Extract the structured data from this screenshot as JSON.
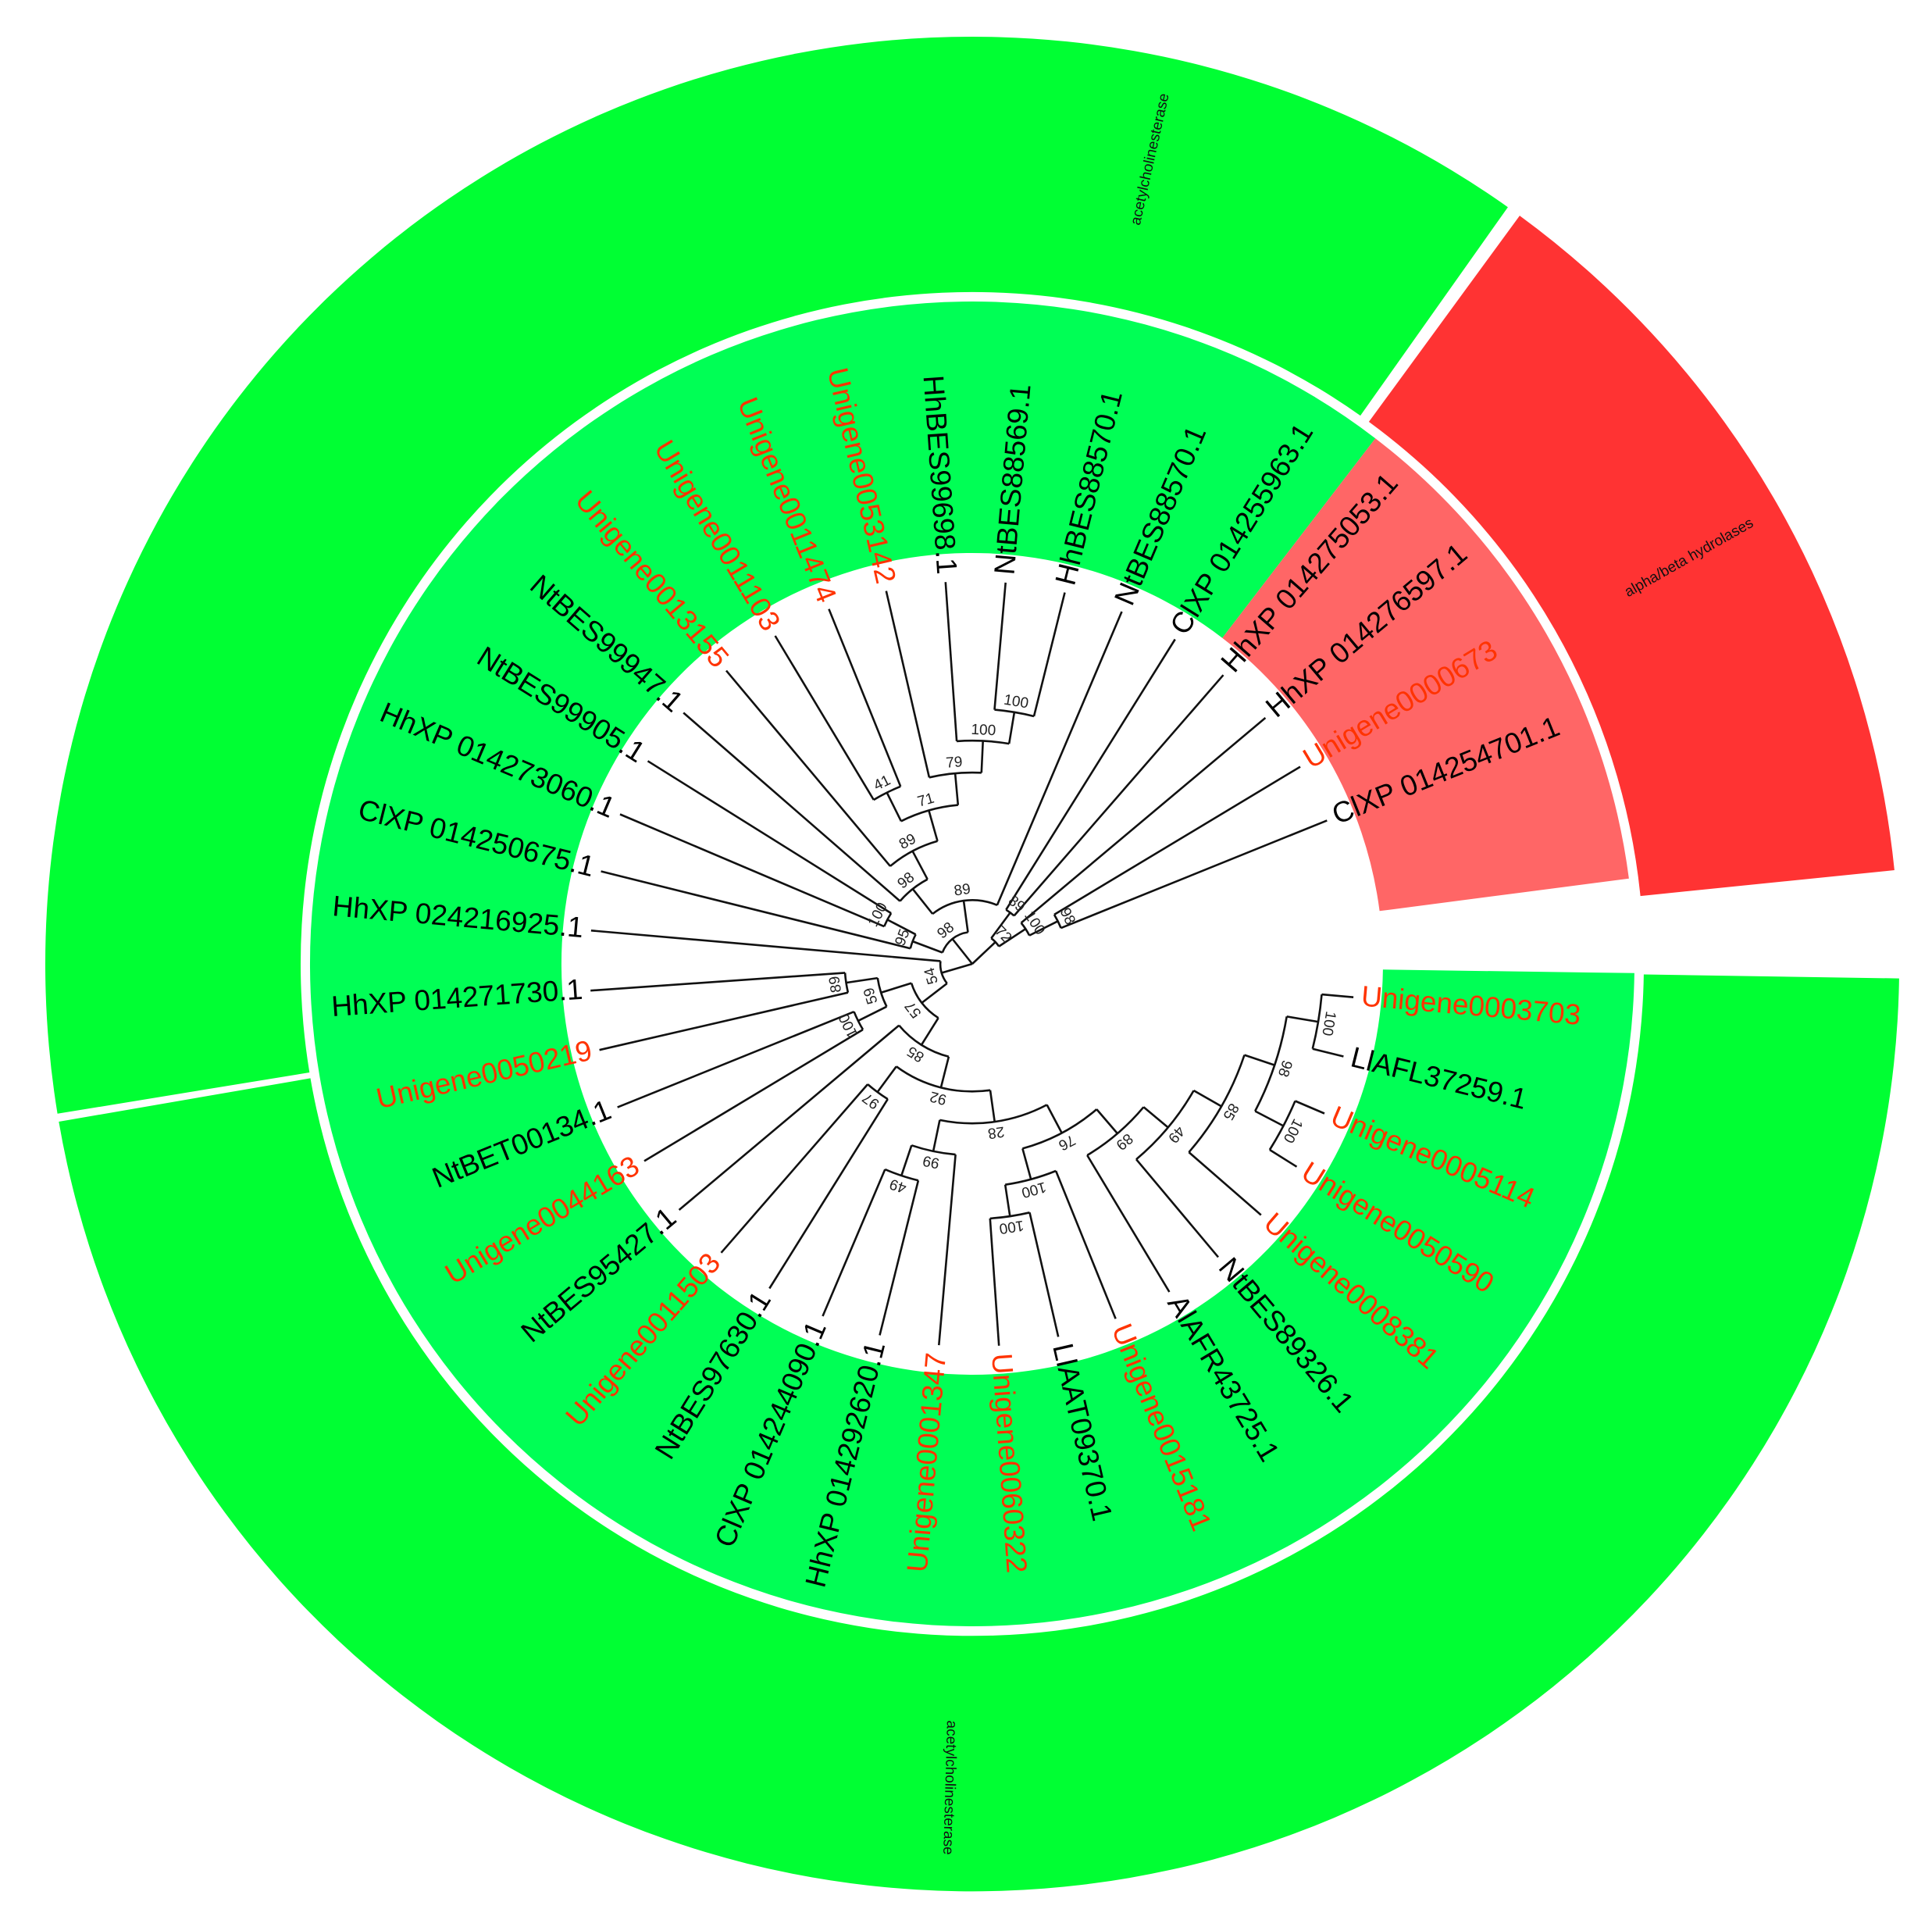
{
  "colors": {
    "outer_acetylcholinesterase": "#00ff33",
    "outer_alpha_beta": "#ff3333",
    "inner_acetylcholinesterase": "#00ff55",
    "inner_alpha_beta": "#ff6666",
    "label_unigene": "#ff3300",
    "label_reference": "#000000",
    "tree_line": "#111111",
    "background": "#ffffff"
  },
  "clade_labels": {
    "acetylcholinesterase_top": "acetylcholinesterase",
    "acetylcholinesterase_bottom": "acetylcholinesterase",
    "alpha_beta_hydrolases": "alpha/beta hydrolases"
  },
  "leaves": [
    {
      "label": "Unigene0003703",
      "unigene": true
    },
    {
      "label": "LlAFL37259.1",
      "unigene": false
    },
    {
      "label": "Unigene0005114",
      "unigene": true
    },
    {
      "label": "Unigene0050590",
      "unigene": true
    },
    {
      "label": "Unigene0008381",
      "unigene": true
    },
    {
      "label": "NtBES89326.1",
      "unigene": false
    },
    {
      "label": "AlAFR43725.1",
      "unigene": false
    },
    {
      "label": "Unigene0015181",
      "unigene": true
    },
    {
      "label": "LlAAT09370.1",
      "unigene": false
    },
    {
      "label": "Unigene0060322",
      "unigene": true
    },
    {
      "label": "Unigene0001347",
      "unigene": true
    },
    {
      "label": "HhXP 014292620.1",
      "unigene": false
    },
    {
      "label": "ClXP 014244090.1",
      "unigene": false
    },
    {
      "label": "NtBES97630.1",
      "unigene": false
    },
    {
      "label": "Unigene0011503",
      "unigene": true
    },
    {
      "label": "NtBES95427.1",
      "unigene": false
    },
    {
      "label": "Unigene0044163",
      "unigene": true
    },
    {
      "label": "NtBET00134.1",
      "unigene": false
    },
    {
      "label": "Unigene0050219",
      "unigene": true
    },
    {
      "label": "HhXP 014271730.1",
      "unigene": false
    },
    {
      "label": "HhXP 024216925.1",
      "unigene": false
    },
    {
      "label": "ClXP 014250675.1",
      "unigene": false
    },
    {
      "label": "HhXP 014273060.1",
      "unigene": false
    },
    {
      "label": "NtBES99905.1",
      "unigene": false
    },
    {
      "label": "NtBES99947.1",
      "unigene": false
    },
    {
      "label": "Unigene0013155",
      "unigene": true
    },
    {
      "label": "Unigene0011103",
      "unigene": true
    },
    {
      "label": "Unigene0011474",
      "unigene": true
    },
    {
      "label": "Unigene0053142",
      "unigene": true
    },
    {
      "label": "HhBES99698.1",
      "unigene": false
    },
    {
      "label": "NtBES88569.1",
      "unigene": false
    },
    {
      "label": "HhBES88570.1",
      "unigene": false
    },
    {
      "label": "NtBES88570.1",
      "unigene": false
    },
    {
      "label": "ClXP 014255963.1",
      "unigene": false
    },
    {
      "label": "HhXP 014275053.1",
      "unigene": false
    },
    {
      "label": "HhXP 014276597.1",
      "unigene": false
    },
    {
      "label": "Unigene0000673",
      "unigene": true
    },
    {
      "label": "ClXP 014254701.1",
      "unigene": false
    }
  ],
  "tree": {
    "children": [
      {
        "support": "54",
        "children": [
          {
            "support": "57",
            "children": [
              {
                "support": "85",
                "children": [
                  {
                    "support": "92",
                    "children": [
                      {
                        "support": "28",
                        "children": [
                          {
                            "support": "76",
                            "children": [
                              {
                                "support": "89",
                                "children": [
                                  {
                                    "support": "49",
                                    "children": [
                                      {
                                        "support": "85",
                                        "children": [
                                          {
                                            "support": "98",
                                            "children": [
                                              {
                                                "support": "100",
                                                "children": [
                                                  {
                                                    "leaf": 0
                                                  },
                                                  {
                                                    "leaf": 1
                                                  }
                                                ]
                                              },
                                              {
                                                "support": "100",
                                                "children": [
                                                  {
                                                    "leaf": 2
                                                  },
                                                  {
                                                    "leaf": 3
                                                  }
                                                ]
                                              }
                                            ]
                                          },
                                          {
                                            "leaf": 4
                                          }
                                        ]
                                      },
                                      {
                                        "leaf": 5
                                      }
                                    ]
                                  },
                                  {
                                    "leaf": 6
                                  }
                                ]
                              },
                              {
                                "support": "100",
                                "children": [
                                  {
                                    "leaf": 7
                                  },
                                  {
                                    "support": "100",
                                    "children": [
                                      {
                                        "leaf": 8
                                      },
                                      {
                                        "leaf": 9
                                      }
                                    ]
                                  }
                                ]
                              }
                            ]
                          },
                          {
                            "support": "99",
                            "children": [
                              {
                                "leaf": 10
                              },
                              {
                                "support": "49",
                                "children": [
                                  {
                                    "leaf": 11
                                  },
                                  {
                                    "leaf": 12
                                  }
                                ]
                              }
                            ]
                          }
                        ]
                      },
                      {
                        "support": "97",
                        "children": [
                          {
                            "leaf": 13
                          },
                          {
                            "leaf": 14
                          }
                        ]
                      }
                    ]
                  },
                  {
                    "leaf": 15
                  }
                ]
              },
              {
                "support": "59",
                "children": [
                  {
                    "support": "100",
                    "children": [
                      {
                        "leaf": 16
                      },
                      {
                        "leaf": 17
                      }
                    ]
                  },
                  {
                    "support": "89",
                    "children": [
                      {
                        "leaf": 18
                      },
                      {
                        "leaf": 19
                      }
                    ]
                  }
                ]
              }
            ]
          },
          {
            "leaf": 20
          }
        ]
      },
      {
        "support": "98",
        "children": [
          {
            "support": "95",
            "children": [
              {
                "leaf": 21
              },
              {
                "support": "100",
                "children": [
                  {
                    "leaf": 22
                  },
                  {
                    "leaf": 23
                  }
                ]
              }
            ]
          },
          {
            "support": "89",
            "children": [
              {
                "support": "98",
                "children": [
                  {
                    "leaf": 24
                  },
                  {
                    "support": "89",
                    "children": [
                      {
                        "leaf": 25
                      },
                      {
                        "support": "71",
                        "children": [
                          {
                            "support": "41",
                            "children": [
                              {
                                "leaf": 26
                              },
                              {
                                "leaf": 27
                              }
                            ]
                          },
                          {
                            "support": "79",
                            "children": [
                              {
                                "leaf": 28
                              },
                              {
                                "support": "100",
                                "children": [
                                  {
                                    "leaf": 29
                                  },
                                  {
                                    "support": "100",
                                    "children": [
                                      {
                                        "leaf": 30
                                      },
                                      {
                                        "leaf": 31
                                      }
                                    ]
                                  }
                                ]
                              }
                            ]
                          }
                        ]
                      }
                    ]
                  }
                ]
              },
              {
                "leaf": 32
              }
            ]
          }
        ]
      },
      {
        "support": "72",
        "children": [
          {
            "support": "89",
            "children": [
              {
                "leaf": 33
              },
              {
                "leaf": 34
              }
            ]
          },
          {
            "support": "100",
            "children": [
              {
                "leaf": 35
              },
              {
                "support": "98",
                "children": [
                  {
                    "leaf": 36
                  },
                  {
                    "leaf": 37
                  }
                ]
              }
            ]
          }
        ]
      }
    ]
  }
}
